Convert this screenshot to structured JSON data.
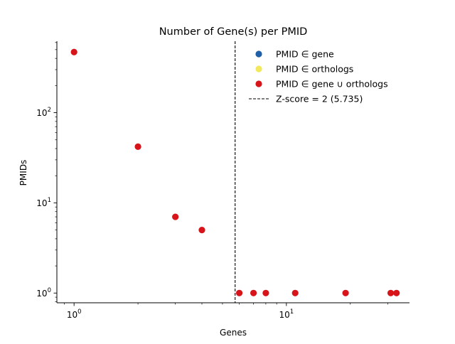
{
  "chart_data": {
    "type": "scatter",
    "title": "Number of Gene(s) per PMID",
    "xlabel": "Genes",
    "ylabel": "PMIDs",
    "xscale": "log",
    "yscale": "log",
    "xlim": [
      0.83,
      38
    ],
    "ylim": [
      0.78,
      620
    ],
    "x_ticks": [
      {
        "value": 1,
        "base": "10",
        "exp": "0"
      },
      {
        "value": 10,
        "base": "10",
        "exp": "1"
      }
    ],
    "y_ticks": [
      {
        "value": 1,
        "base": "10",
        "exp": "0"
      },
      {
        "value": 10,
        "base": "10",
        "exp": "1"
      },
      {
        "value": 100,
        "base": "10",
        "exp": "2"
      }
    ],
    "grid": false,
    "legend_position": "top-right",
    "series": [
      {
        "name": "PMID ∈ gene",
        "color": "#1f5fa8",
        "points": []
      },
      {
        "name": "PMID ∈ orthologs",
        "color": "#f2e85c",
        "points": []
      },
      {
        "name": "PMID ∈ gene ∪ orthologs",
        "color": "#d7141a",
        "points": [
          [
            1,
            470
          ],
          [
            2,
            42
          ],
          [
            3,
            7
          ],
          [
            4,
            5
          ],
          [
            6,
            1
          ],
          [
            7,
            1
          ],
          [
            8,
            1
          ],
          [
            11,
            1
          ],
          [
            19,
            1
          ],
          [
            31,
            1
          ],
          [
            33,
            1
          ]
        ]
      }
    ],
    "vline": {
      "x": 5.735,
      "label": "Z-score = 2 (5.735)",
      "color": "#000000",
      "style": "dashed"
    }
  }
}
